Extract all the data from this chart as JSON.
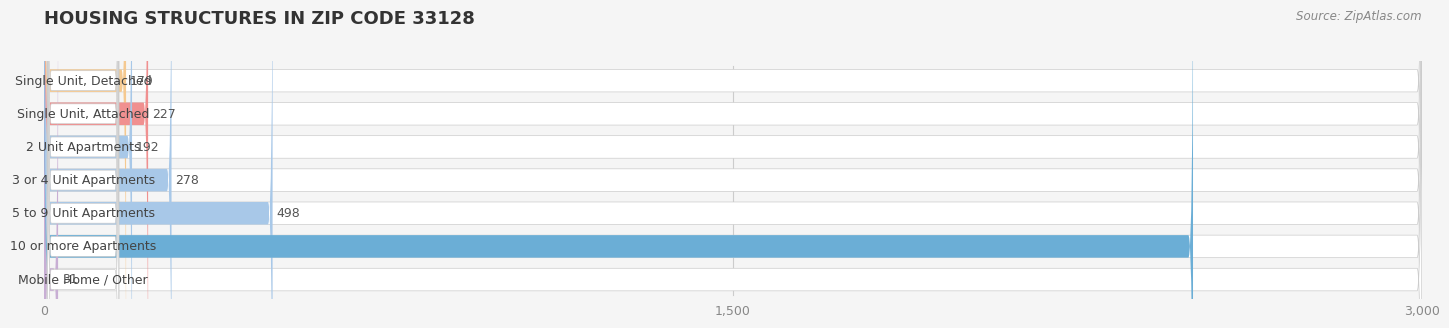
{
  "title": "HOUSING STRUCTURES IN ZIP CODE 33128",
  "source": "Source: ZipAtlas.com",
  "categories": [
    "Single Unit, Detached",
    "Single Unit, Attached",
    "2 Unit Apartments",
    "3 or 4 Unit Apartments",
    "5 to 9 Unit Apartments",
    "10 or more Apartments",
    "Mobile Home / Other"
  ],
  "values": [
    179,
    227,
    192,
    278,
    498,
    2502,
    31
  ],
  "bar_colors": [
    "#f5c990",
    "#f09090",
    "#a8c8e8",
    "#a8c8e8",
    "#a8c8e8",
    "#6baed6",
    "#c8aed4"
  ],
  "bar_bg_colors": [
    "#f5e8d8",
    "#f8dada",
    "#dceaf5",
    "#dceaf5",
    "#dceaf5",
    "#dceaf5",
    "#ead8f0"
  ],
  "xlim": [
    0,
    3000
  ],
  "xticks": [
    0,
    1500,
    3000
  ],
  "background_color": "#f0f0f0",
  "bar_bg_color": "#e8e8e8",
  "title_fontsize": 13,
  "label_fontsize": 9,
  "value_fontsize": 9
}
